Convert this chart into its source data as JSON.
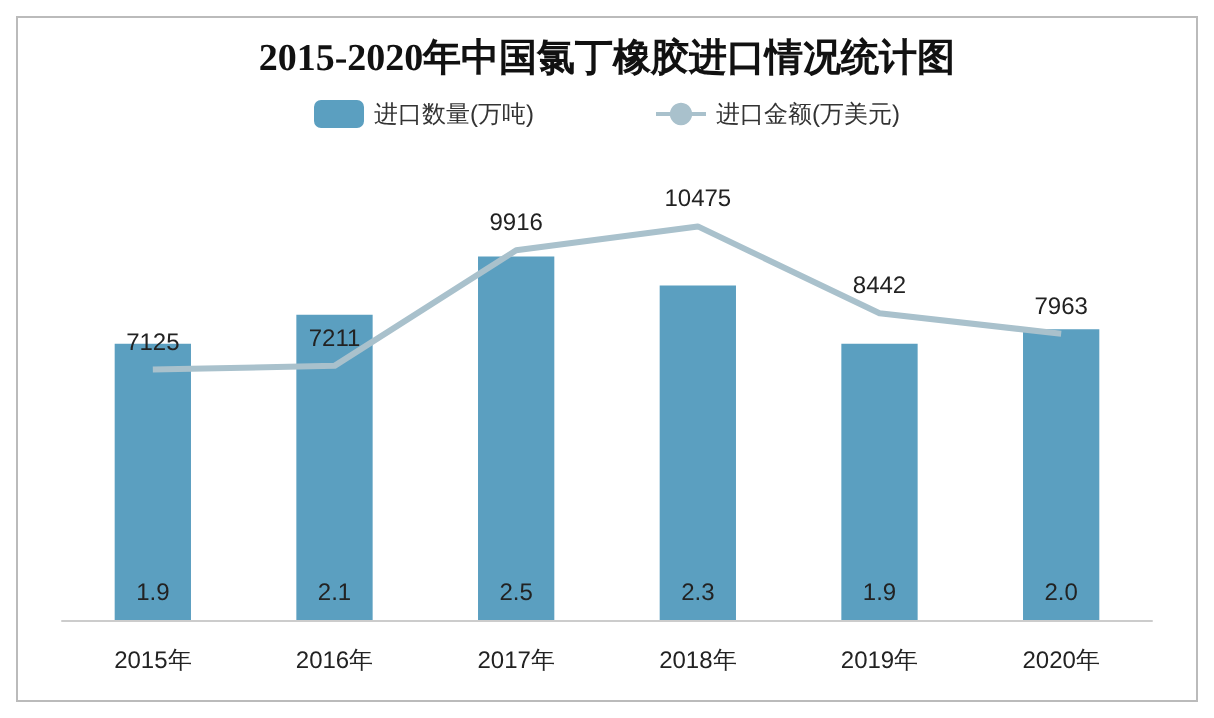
{
  "chart_data": {
    "type": "bar",
    "title": "2015-2020年中国氯丁橡胶进口情况统计图",
    "categories": [
      "2015年",
      "2016年",
      "2017年",
      "2018年",
      "2019年",
      "2020年"
    ],
    "series": [
      {
        "name": "进口数量(万吨)",
        "color": "#5b9fc0",
        "values": [
          1.9,
          2.1,
          2.5,
          2.3,
          1.9,
          2.0
        ],
        "value_labels": [
          "1.9",
          "2.1",
          "2.5",
          "2.3",
          "1.9",
          "2.0"
        ]
      },
      {
        "name": "进口金额(万美元)",
        "type": "line",
        "axis": "y2",
        "color": "#a9c1cc",
        "values": [
          7125,
          7211,
          9916,
          10475,
          8442,
          7963
        ]
      }
    ],
    "data_labels": true,
    "legend": "top",
    "grid": false,
    "tick_labels": "x",
    "marker": "none"
  }
}
